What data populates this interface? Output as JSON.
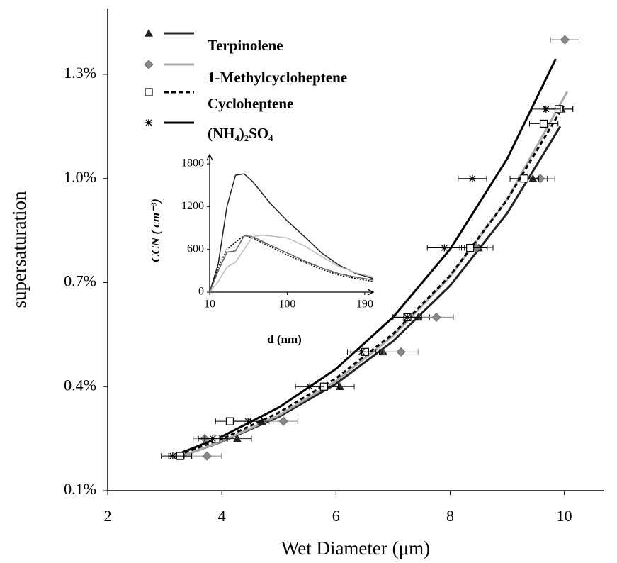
{
  "chart_data": [
    {
      "type": "scatter",
      "x_label": "Wet Diameter (μm)",
      "y_label": "supersaturation",
      "xlim": [
        2,
        10.7
      ],
      "ylim": [
        0.1,
        1.49
      ],
      "xticks": [
        2,
        4,
        6,
        8,
        10
      ],
      "yticks": [
        {
          "value": 0.1,
          "label": "0.1%"
        },
        {
          "value": 0.4,
          "label": "0.4%"
        },
        {
          "value": 0.7,
          "label": "0.7%"
        },
        {
          "value": 1.0,
          "label": "1.0%"
        },
        {
          "value": 1.3,
          "label": "1.3%"
        }
      ],
      "series": [
        {
          "name": "Terpinolene",
          "color": "#222222",
          "marker": "triangle",
          "line_style": "solid",
          "x": [
            3.27,
            4.27,
            4.7,
            6.07,
            6.83,
            7.44,
            8.5,
            9.45,
            9.95
          ],
          "values": [
            0.2,
            0.25,
            0.3,
            0.4,
            0.5,
            0.6,
            0.8,
            1.0,
            1.2
          ],
          "xerr": [
            0.2,
            0.25,
            0.2,
            0.25,
            0.3,
            0.2,
            0.25,
            0.25,
            0.2
          ],
          "fit_x": [
            3.3,
            4,
            5,
            6,
            7,
            8,
            9,
            9.93
          ],
          "fit_values": [
            0.2,
            0.241,
            0.313,
            0.408,
            0.531,
            0.691,
            0.9,
            1.15
          ]
        },
        {
          "name": "1-Methylcycloheptene",
          "color": "#888888",
          "marker": "diamond",
          "line_style": "solid",
          "x": [
            3.74,
            3.7,
            5.08,
            5.79,
            7.14,
            7.76,
            8.46,
            9.58,
            10.01
          ],
          "values": [
            0.2,
            0.25,
            0.3,
            0.4,
            0.5,
            0.6,
            0.8,
            1.0,
            1.4
          ],
          "xerr": [
            0.25,
            0.2,
            0.25,
            0.25,
            0.3,
            0.3,
            0.3,
            0.25,
            0.25
          ],
          "fit_x": [
            3.3,
            4,
            5,
            6,
            7,
            8,
            9,
            10.05
          ],
          "fit_values": [
            0.2,
            0.242,
            0.317,
            0.416,
            0.546,
            0.717,
            0.94,
            1.25
          ]
        },
        {
          "name": "Cycloheptene",
          "color": "#000000",
          "marker": "square",
          "line_style": "dashed",
          "x": [
            3.27,
            3.9,
            4.14,
            5.79,
            6.51,
            7.25,
            8.35,
            9.3,
            9.64,
            9.9
          ],
          "values": [
            0.2,
            0.25,
            0.3,
            0.4,
            0.5,
            0.6,
            0.8,
            1.0,
            1.158,
            1.2
          ],
          "xerr": [
            0.2,
            0.2,
            0.25,
            0.25,
            0.25,
            0.25,
            0.3,
            0.25,
            0.25,
            0.25
          ],
          "fit_x": [
            3.35,
            4,
            5,
            6,
            7,
            8,
            9,
            9.99
          ],
          "fit_values": [
            0.21,
            0.249,
            0.325,
            0.424,
            0.552,
            0.72,
            0.939,
            1.21
          ]
        },
        {
          "name": "(NH₄)₂SO₄",
          "color": "#000000",
          "marker": "asterisk",
          "line_style": "solid",
          "x": [
            3.14,
            3.84,
            4.46,
            5.54,
            6.45,
            7.25,
            7.9,
            8.39,
            9.68
          ],
          "values": [
            0.2,
            0.25,
            0.3,
            0.4,
            0.5,
            0.6,
            0.8,
            1.0,
            1.2
          ],
          "xerr": [
            0.2,
            0.25,
            0.25,
            0.25,
            0.25,
            0.25,
            0.3,
            0.25,
            0.25
          ],
          "fit_x": [
            3.3,
            4,
            5,
            6,
            7,
            8,
            9,
            9.85
          ],
          "fit_values": [
            0.21,
            0.256,
            0.34,
            0.451,
            0.6,
            0.796,
            1.057,
            1.345
          ]
        }
      ]
    },
    {
      "type": "line",
      "x_label": "d (nm)",
      "y_label": "CCN ( cm⁻³)",
      "xlim": [
        10,
        200
      ],
      "ylim": [
        0,
        1930
      ],
      "xticks": [
        10,
        100,
        190
      ],
      "yticks": [
        0,
        600,
        1200,
        1800
      ],
      "x": [
        10,
        20,
        30,
        40,
        50,
        60,
        70,
        80,
        100,
        120,
        140,
        160,
        180,
        200
      ],
      "series": [
        {
          "color": "#222222",
          "line_style": "solid",
          "values": [
            0,
            400,
            1200,
            1640,
            1660,
            1550,
            1400,
            1250,
            1000,
            780,
            550,
            380,
            260,
            190
          ]
        },
        {
          "color": "#000000",
          "line_style": "dotted",
          "values": [
            0,
            350,
            600,
            700,
            800,
            760,
            700,
            640,
            520,
            420,
            320,
            240,
            190,
            150
          ]
        },
        {
          "color": "#666666",
          "line_style": "solid",
          "values": [
            0,
            300,
            560,
            580,
            790,
            780,
            720,
            660,
            550,
            440,
            340,
            260,
            210,
            170
          ]
        },
        {
          "color": "#bbbbbb",
          "line_style": "solid",
          "values": [
            0,
            150,
            350,
            420,
            600,
            780,
            800,
            790,
            760,
            650,
            500,
            360,
            270,
            210
          ]
        }
      ]
    }
  ]
}
